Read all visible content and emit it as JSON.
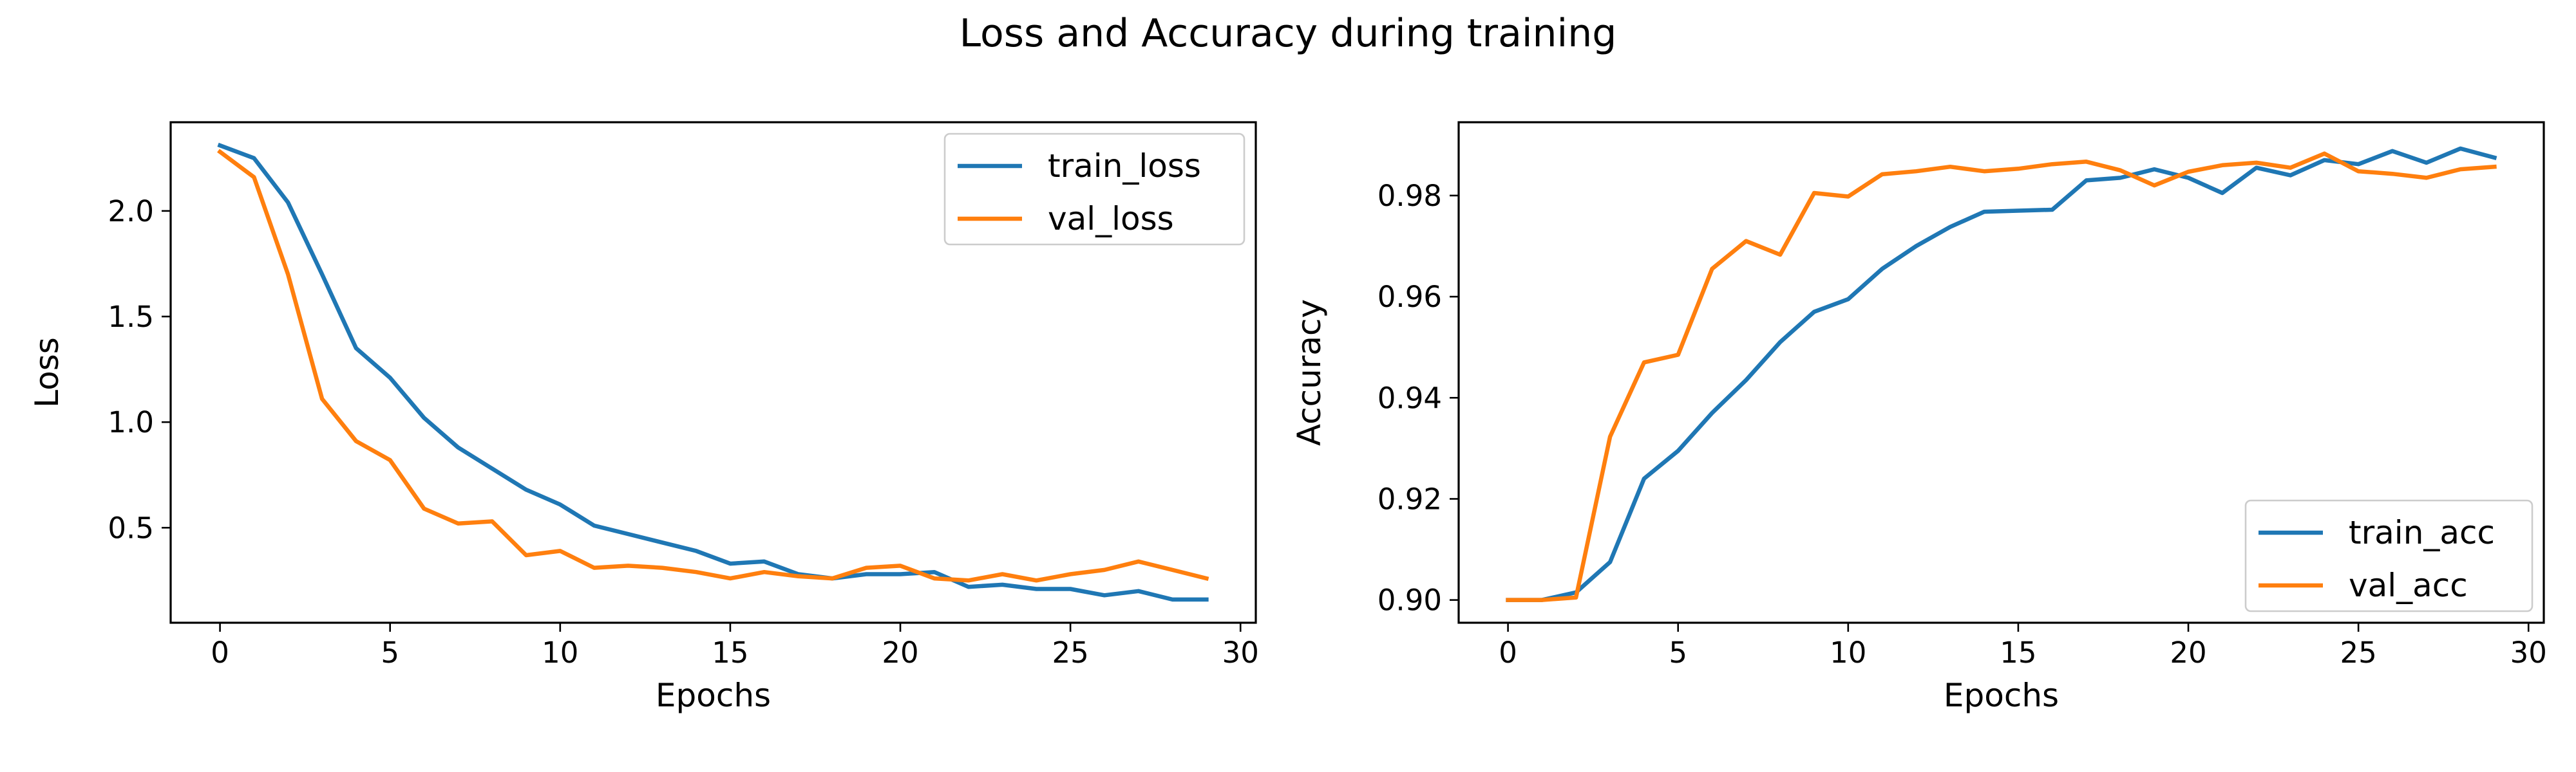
{
  "figure": {
    "title": "Loss and Accuracy during training"
  },
  "colors": {
    "train": "#1f77b4",
    "val": "#ff7f0e"
  },
  "chart_data": [
    {
      "type": "line",
      "title": "",
      "xlabel": "Epochs",
      "ylabel": "Loss",
      "xlim": [
        -1.45,
        30.45
      ],
      "ylim": [
        0.05,
        2.42
      ],
      "xticks": [
        0,
        5,
        10,
        15,
        20,
        25,
        30
      ],
      "xtick_labels": [
        "0",
        "5",
        "10",
        "15",
        "20",
        "25",
        "30"
      ],
      "yticks": [
        0.5,
        1.0,
        1.5,
        2.0
      ],
      "ytick_labels": [
        "0.5",
        "1.0",
        "1.5",
        "2.0"
      ],
      "legend_position": "upper right",
      "x": [
        0,
        1,
        2,
        3,
        4,
        5,
        6,
        7,
        8,
        9,
        10,
        11,
        12,
        13,
        14,
        15,
        16,
        17,
        18,
        19,
        20,
        21,
        22,
        23,
        24,
        25,
        26,
        27,
        28,
        29
      ],
      "series": [
        {
          "name": "train_loss",
          "color_key": "train",
          "values": [
            2.31,
            2.25,
            2.04,
            1.7,
            1.35,
            1.21,
            1.02,
            0.88,
            0.78,
            0.68,
            0.61,
            0.51,
            0.47,
            0.43,
            0.39,
            0.33,
            0.34,
            0.28,
            0.26,
            0.28,
            0.28,
            0.29,
            0.22,
            0.23,
            0.21,
            0.21,
            0.18,
            0.2,
            0.16,
            0.16
          ]
        },
        {
          "name": "val_loss",
          "color_key": "val",
          "values": [
            2.28,
            2.16,
            1.7,
            1.11,
            0.91,
            0.82,
            0.59,
            0.52,
            0.53,
            0.37,
            0.39,
            0.31,
            0.32,
            0.31,
            0.29,
            0.26,
            0.29,
            0.27,
            0.26,
            0.31,
            0.32,
            0.26,
            0.25,
            0.28,
            0.25,
            0.28,
            0.3,
            0.34,
            0.3,
            0.26
          ]
        }
      ]
    },
    {
      "type": "line",
      "title": "",
      "xlabel": "Epochs",
      "ylabel": "Accuracy",
      "xlim": [
        -1.45,
        30.45
      ],
      "ylim": [
        0.8955,
        0.9945
      ],
      "xticks": [
        0,
        5,
        10,
        15,
        20,
        25,
        30
      ],
      "xtick_labels": [
        "0",
        "5",
        "10",
        "15",
        "20",
        "25",
        "30"
      ],
      "yticks": [
        0.9,
        0.92,
        0.94,
        0.96,
        0.98
      ],
      "ytick_labels": [
        "0.90",
        "0.92",
        "0.94",
        "0.96",
        "0.98"
      ],
      "legend_position": "lower right",
      "x": [
        0,
        1,
        2,
        3,
        4,
        5,
        6,
        7,
        8,
        9,
        10,
        11,
        12,
        13,
        14,
        15,
        16,
        17,
        18,
        19,
        20,
        21,
        22,
        23,
        24,
        25,
        26,
        27,
        28,
        29
      ],
      "series": [
        {
          "name": "train_acc",
          "color_key": "train",
          "values": [
            0.9,
            0.9,
            0.9015,
            0.9075,
            0.924,
            0.9295,
            0.937,
            0.9435,
            0.951,
            0.957,
            0.9595,
            0.9655,
            0.97,
            0.9738,
            0.9768,
            0.977,
            0.9772,
            0.983,
            0.9835,
            0.9852,
            0.9835,
            0.9805,
            0.9855,
            0.984,
            0.987,
            0.9862,
            0.9888,
            0.9865,
            0.9893,
            0.9875
          ]
        },
        {
          "name": "val_acc",
          "color_key": "val",
          "values": [
            0.9,
            0.9,
            0.9005,
            0.9323,
            0.947,
            0.9485,
            0.9655,
            0.971,
            0.9683,
            0.9805,
            0.9798,
            0.9842,
            0.9848,
            0.9857,
            0.9848,
            0.9853,
            0.9862,
            0.9867,
            0.985,
            0.982,
            0.9847,
            0.986,
            0.9865,
            0.9855,
            0.9883,
            0.9848,
            0.9843,
            0.9835,
            0.9852,
            0.9857
          ]
        }
      ]
    }
  ]
}
